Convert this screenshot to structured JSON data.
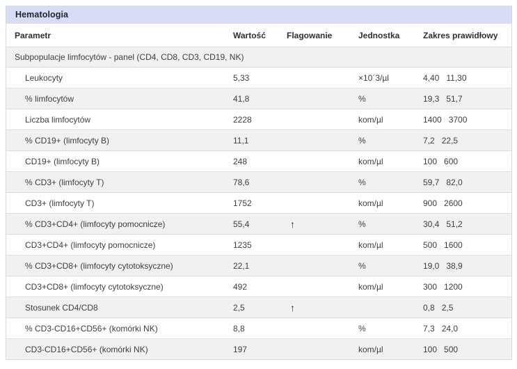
{
  "panel": {
    "title": "Hematologia"
  },
  "columns": [
    "Parametr",
    "Wartość",
    "Flagowanie",
    "Jednostka",
    "Zakres prawidłowy"
  ],
  "section": {
    "title": "Subpopulacje limfocytów - panel (CD4, CD8, CD3, CD19, NK)"
  },
  "icons": {
    "flag_up": "↑"
  },
  "colors": {
    "panel_header_bg": "#d6ddf5",
    "row_alt_bg": "#f1f1f1",
    "border": "#d9d9d9",
    "text": "#3c4043"
  },
  "rows": [
    {
      "param": "Leukocyty",
      "value": "5,33",
      "flag": "",
      "unit": "×10´3/µl",
      "range_low": "4,40",
      "range_high": "11,30"
    },
    {
      "param": "% limfocytów",
      "value": "41,8",
      "flag": "",
      "unit": "%",
      "range_low": "19,3",
      "range_high": "51,7"
    },
    {
      "param": "Liczba limfocytów",
      "value": "2228",
      "flag": "",
      "unit": "kom/µl",
      "range_low": "1400",
      "range_high": "3700"
    },
    {
      "param": "% CD19+ (limfocyty B)",
      "value": "11,1",
      "flag": "",
      "unit": "%",
      "range_low": "7,2",
      "range_high": "22,5"
    },
    {
      "param": "CD19+ (limfocyty B)",
      "value": "248",
      "flag": "",
      "unit": "kom/µl",
      "range_low": "100",
      "range_high": "600"
    },
    {
      "param": "% CD3+ (limfocyty T)",
      "value": "78,6",
      "flag": "",
      "unit": "%",
      "range_low": "59,7",
      "range_high": "82,0"
    },
    {
      "param": "CD3+ (limfocyty T)",
      "value": "1752",
      "flag": "",
      "unit": "kom/µl",
      "range_low": "900",
      "range_high": "2600"
    },
    {
      "param": "% CD3+CD4+ (limfocyty pomocnicze)",
      "value": "55,4",
      "flag": "up",
      "unit": "%",
      "range_low": "30,4",
      "range_high": "51,2"
    },
    {
      "param": "CD3+CD4+ (limfocyty pomocnicze)",
      "value": "1235",
      "flag": "",
      "unit": "kom/µl",
      "range_low": "500",
      "range_high": "1600"
    },
    {
      "param": "% CD3+CD8+ (limfocyty cytotoksyczne)",
      "value": "22,1",
      "flag": "",
      "unit": "%",
      "range_low": "19,0",
      "range_high": "38,9"
    },
    {
      "param": "CD3+CD8+ (limfocyty cytotoksyczne)",
      "value": "492",
      "flag": "",
      "unit": "kom/µl",
      "range_low": "300",
      "range_high": "1200"
    },
    {
      "param": "Stosunek CD4/CD8",
      "value": "2,5",
      "flag": "up",
      "unit": "",
      "range_low": "0,8",
      "range_high": "2,5"
    },
    {
      "param": "% CD3-CD16+CD56+ (komórki NK)",
      "value": "8,8",
      "flag": "",
      "unit": "%",
      "range_low": "7,3",
      "range_high": "24,0"
    },
    {
      "param": "CD3-CD16+CD56+ (komórki NK)",
      "value": "197",
      "flag": "",
      "unit": "kom/µl",
      "range_low": "100",
      "range_high": "500"
    }
  ]
}
